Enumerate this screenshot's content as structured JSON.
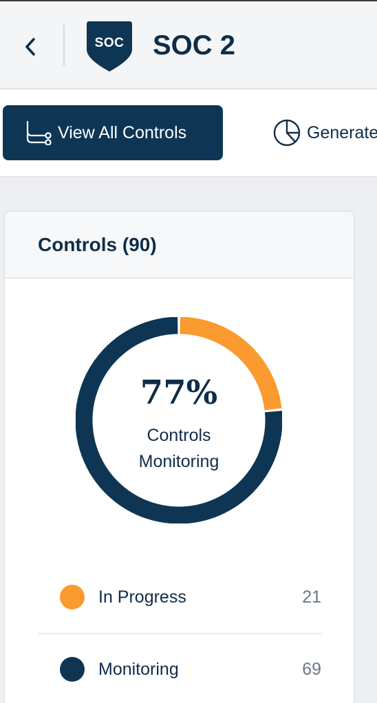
{
  "header": {
    "back_icon": "chevron-left-icon",
    "logo_text": "SOC",
    "logo_color": "#0e3654",
    "title": "SOC 2"
  },
  "toolbar": {
    "view_all_label": "View All Controls",
    "view_all_icon": "hierarchy-icon",
    "generate_label": "Generate",
    "generate_icon": "pie-chart-icon"
  },
  "controls_card": {
    "title": "Controls (90)",
    "percent": "77%",
    "percent_label": "Controls Monitoring",
    "legend": [
      {
        "name": "In Progress",
        "count": "21",
        "color": "#fb9a2e"
      },
      {
        "name": "Monitoring",
        "count": "69",
        "color": "#0e3654"
      }
    ]
  },
  "chart_data": {
    "type": "pie",
    "categories": [
      "In Progress",
      "Monitoring"
    ],
    "values": [
      21,
      69
    ],
    "colors": [
      "#fb9a2e",
      "#0e3654"
    ],
    "center_text": "77%",
    "center_subtext": "Controls Monitoring"
  }
}
